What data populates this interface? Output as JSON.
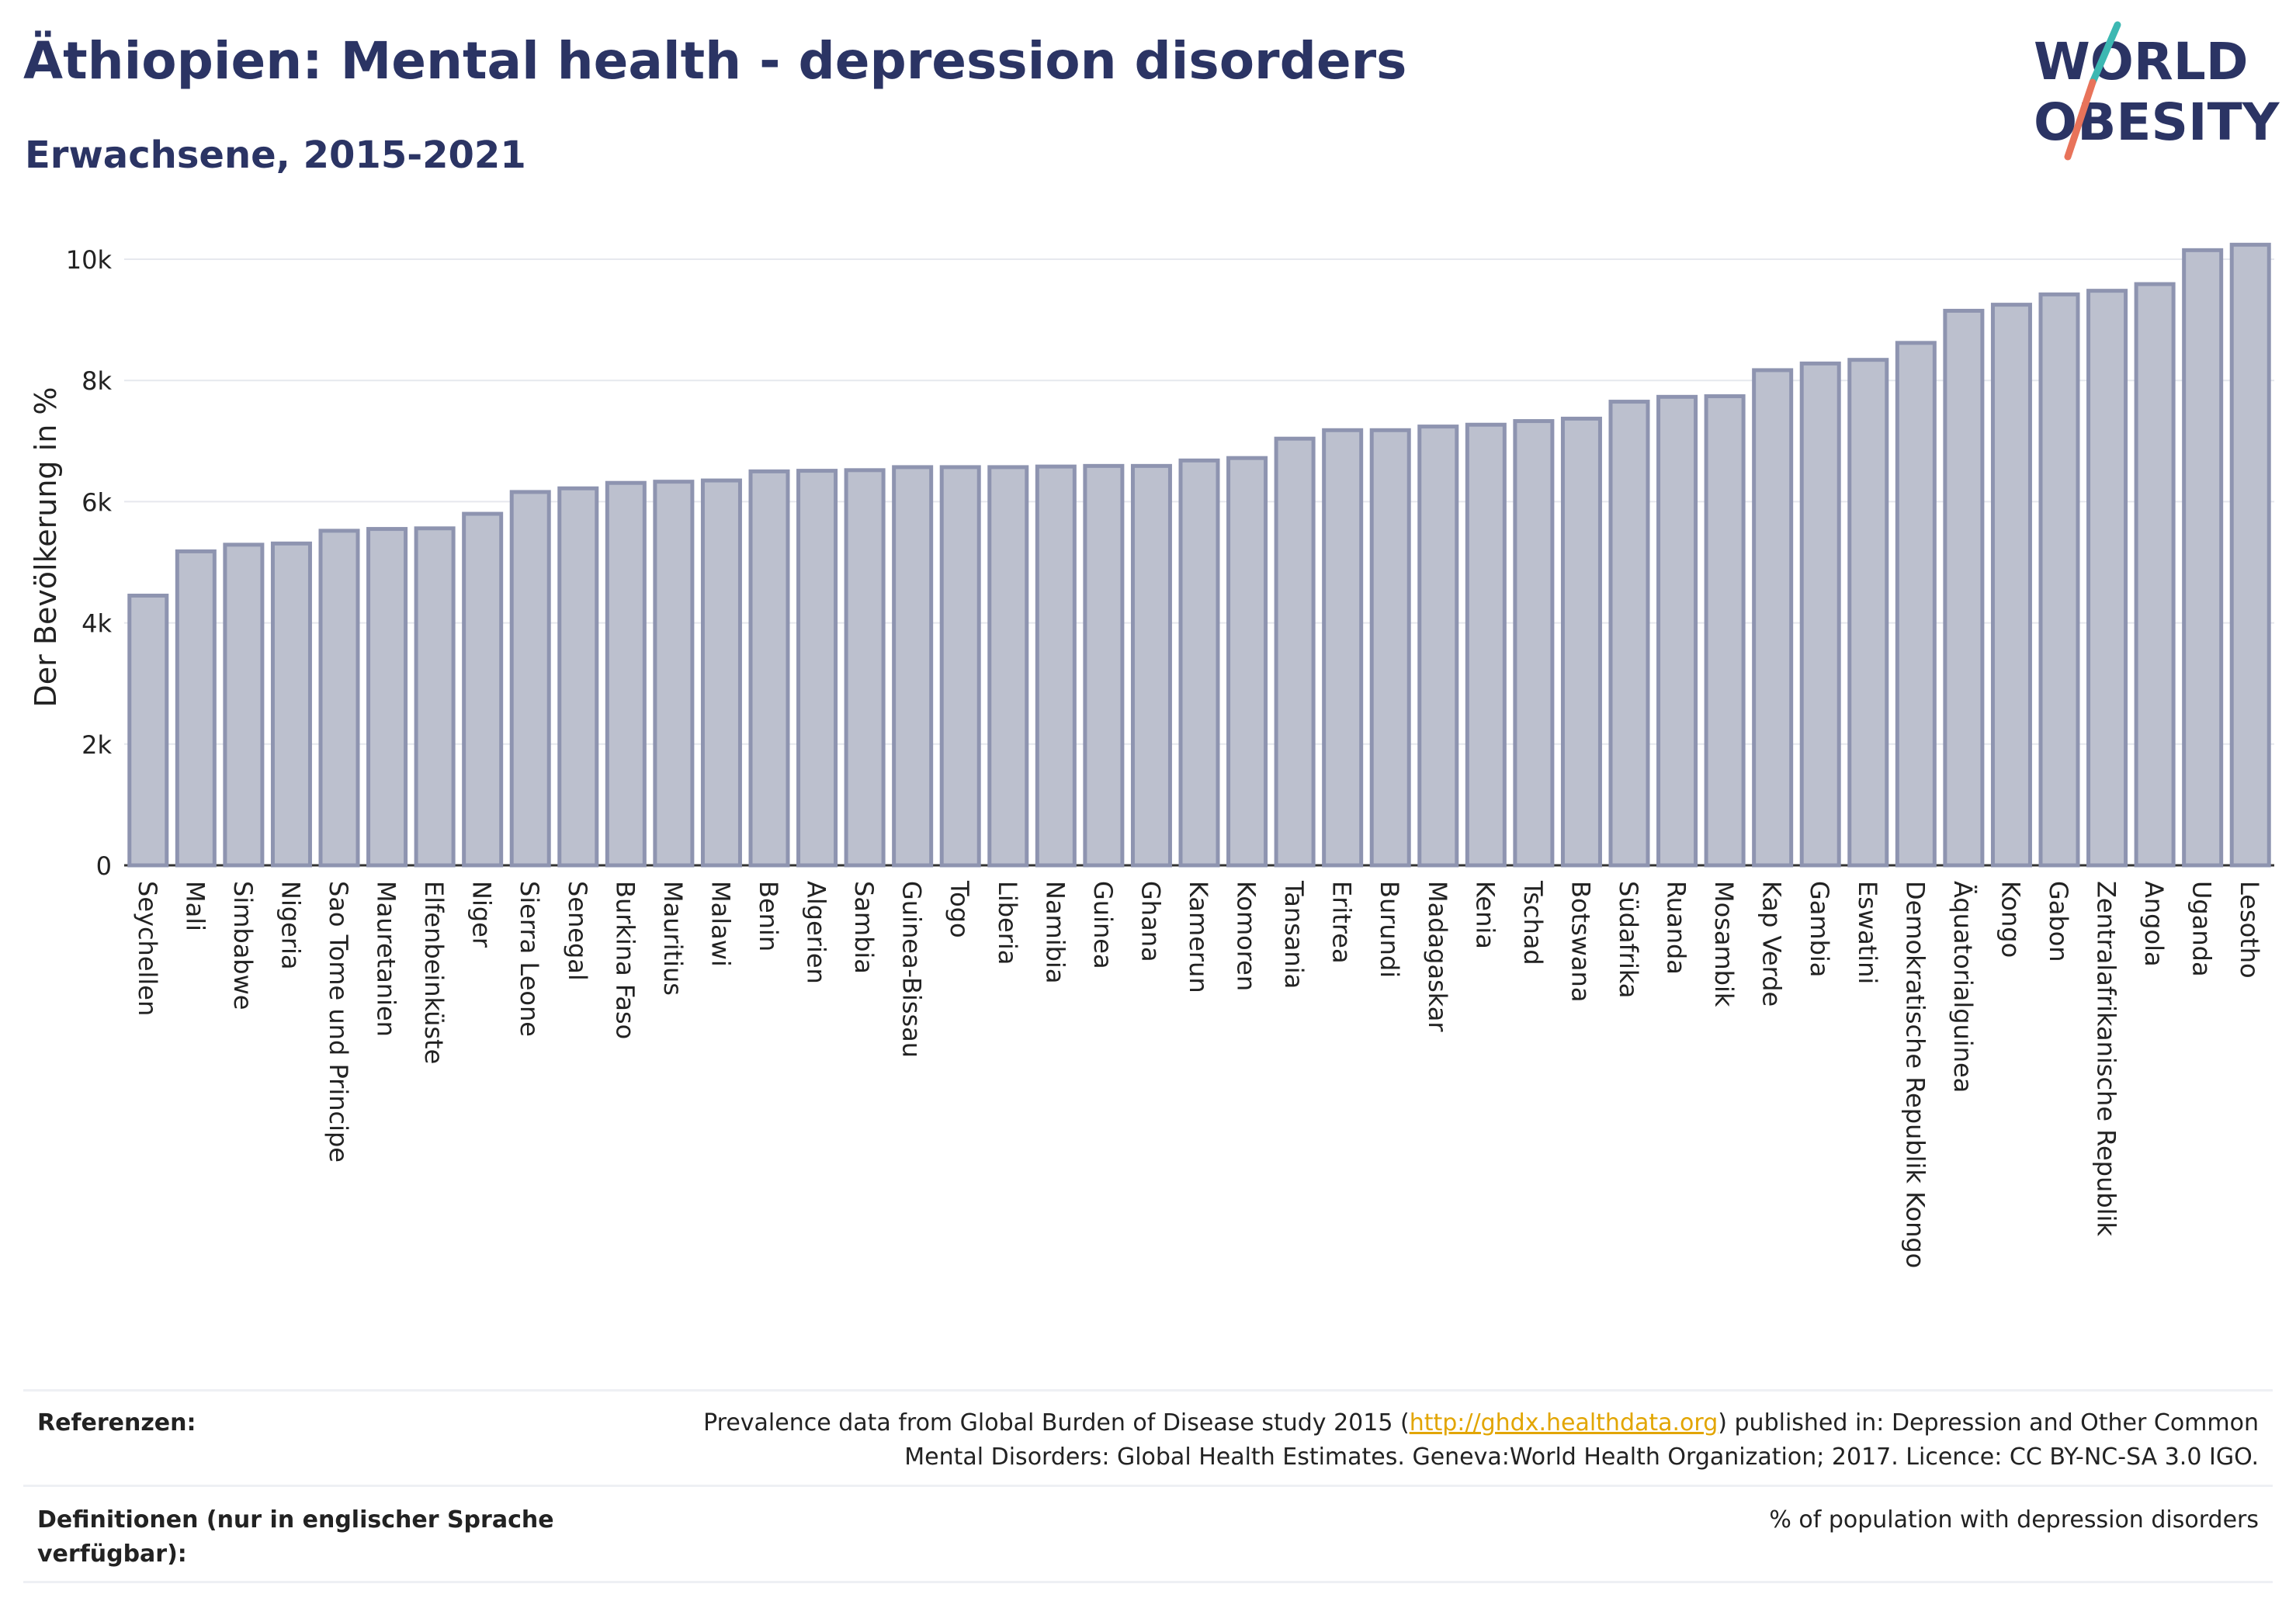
{
  "header": {
    "title": "Äthiopien: Mental health - depression disorders",
    "subtitle": "Erwachsene, 2015-2021"
  },
  "logo": {
    "line1": "WORLD",
    "line2": "OBESITY",
    "colors": {
      "text": "#2b3464",
      "slash_top": "#3cb8b2",
      "slash_bottom": "#e8735a"
    }
  },
  "chart_data": {
    "type": "bar",
    "ylabel": "Der Bevölkerung in %",
    "ylim": [
      0,
      10500
    ],
    "y_ticks": [
      {
        "value": 0,
        "label": "0"
      },
      {
        "value": 2000,
        "label": "2k"
      },
      {
        "value": 4000,
        "label": "4k"
      },
      {
        "value": 6000,
        "label": "6k"
      },
      {
        "value": 8000,
        "label": "8k"
      },
      {
        "value": 10000,
        "label": "10k"
      }
    ],
    "grid": true,
    "bar_fill": "#bcc0ce",
    "bar_stroke": "#8e94b0",
    "categories": [
      "Seychellen",
      "Mali",
      "Simbabwe",
      "Nigeria",
      "Sao Tome und Principe",
      "Mauretanien",
      "Elfenbeinküste",
      "Niger",
      "Sierra Leone",
      "Senegal",
      "Burkina Faso",
      "Mauritius",
      "Malawi",
      "Benin",
      "Algerien",
      "Sambia",
      "Guinea-Bissau",
      "Togo",
      "Liberia",
      "Namibia",
      "Guinea",
      "Ghana",
      "Kamerun",
      "Komoren",
      "Tansania",
      "Eritrea",
      "Burundi",
      "Madagaskar",
      "Kenia",
      "Tschad",
      "Botswana",
      "Südafrika",
      "Ruanda",
      "Mosambik",
      "Kap Verde",
      "Gambia",
      "Eswatini",
      "Demokratische Republik Kongo",
      "Äquatorialguinea",
      "Kongo",
      "Gabon",
      "Zentralafrikanische Republik",
      "Angola",
      "Uganda",
      "Lesotho"
    ],
    "values": [
      4450,
      5180,
      5290,
      5310,
      5520,
      5550,
      5560,
      5800,
      6160,
      6220,
      6310,
      6330,
      6350,
      6500,
      6510,
      6520,
      6570,
      6570,
      6570,
      6580,
      6590,
      6590,
      6680,
      6720,
      7040,
      7180,
      7180,
      7240,
      7270,
      7330,
      7370,
      7650,
      7730,
      7740,
      8170,
      8280,
      8340,
      8620,
      9150,
      9250,
      9420,
      9480,
      9590,
      10150,
      10240
    ]
  },
  "references": {
    "label": "Referenzen:",
    "text_before": "Prevalence data from Global Burden of Disease study 2015 (",
    "link": "http://ghdx.healthdata.org",
    "text_after": ") published in: Depression and Other Common",
    "text_line2": "Mental Disorders: Global Health Estimates. Geneva:World Health Organization; 2017. Licence: CC BY-NC-SA 3.0 IGO."
  },
  "definitions": {
    "label_line1": "Definitionen (nur in englischer Sprache",
    "label_line2": "verfügbar):",
    "text": "% of population with depression disorders"
  }
}
